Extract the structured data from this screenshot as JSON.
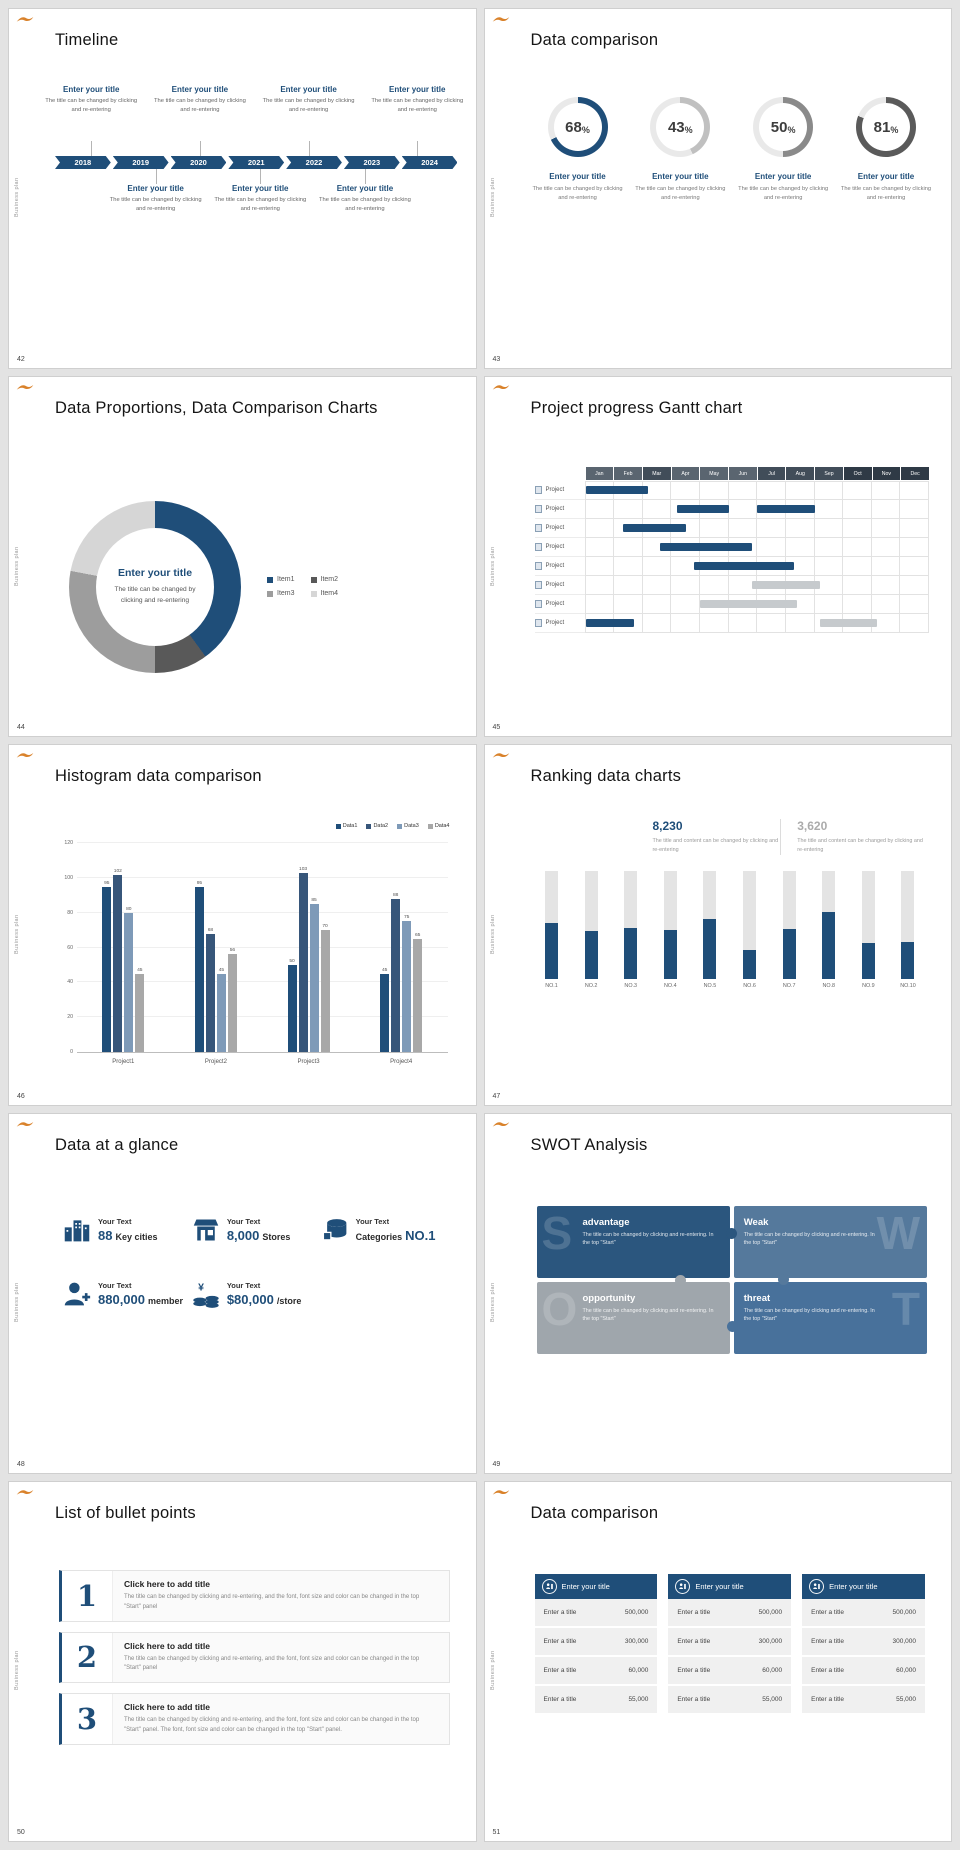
{
  "page": {
    "background": "#e3e3e3",
    "accent": "#1f4e79",
    "brand": "Business plan"
  },
  "slides": [
    {
      "number": "42",
      "title": "Timeline",
      "type": "timeline",
      "item_title": "Enter your title",
      "item_body": "The title can be changed by clicking and re-entering",
      "years": [
        "2018",
        "2019",
        "2020",
        "2021",
        "2022",
        "2023",
        "2024"
      ]
    },
    {
      "number": "43",
      "title": "Data comparison",
      "type": "rings",
      "item_title": "Enter your title",
      "item_body": "The title can be changed by clicking and re-entering",
      "rings": [
        {
          "percent": 68,
          "color": "#1f4e79"
        },
        {
          "percent": 43,
          "color": "#c0c0c0"
        },
        {
          "percent": 50,
          "color": "#8a8a8a"
        },
        {
          "percent": 81,
          "color": "#5a5a5a"
        }
      ]
    },
    {
      "number": "44",
      "title": "Data Proportions, Data Comparison Charts",
      "type": "donut",
      "center_title": "Enter your title",
      "center_body": "The title can be changed by clicking and re-entering",
      "segments": [
        {
          "label": "Item1",
          "value": 40,
          "color": "#1f4e79"
        },
        {
          "label": "Item2",
          "value": 10,
          "color": "#595959"
        },
        {
          "label": "Item3",
          "value": 28,
          "color": "#9d9d9d"
        },
        {
          "label": "Item4",
          "value": 22,
          "color": "#d6d6d6"
        }
      ]
    },
    {
      "number": "45",
      "title": "Project progress Gantt chart",
      "type": "gantt",
      "row_label": "Project",
      "months": [
        {
          "label": "Jan",
          "color": "#5a6570"
        },
        {
          "label": "Feb",
          "color": "#5a6570"
        },
        {
          "label": "Mar",
          "color": "#414d59"
        },
        {
          "label": "Apr",
          "color": "#5a6570"
        },
        {
          "label": "May",
          "color": "#5a6570"
        },
        {
          "label": "Jun",
          "color": "#5a6570"
        },
        {
          "label": "Jul",
          "color": "#414d59"
        },
        {
          "label": "Aug",
          "color": "#414d59"
        },
        {
          "label": "Sep",
          "color": "#414d59"
        },
        {
          "label": "Oct",
          "color": "#2f3a46"
        },
        {
          "label": "Nov",
          "color": "#2f3a46"
        },
        {
          "label": "Dec",
          "color": "#2f3a46"
        }
      ],
      "rows": [
        {
          "bars": [
            {
              "start": 1,
              "span": 2.2,
              "color": "#1f4e79"
            }
          ]
        },
        {
          "bars": [
            {
              "start": 4.2,
              "span": 1.8,
              "color": "#1f4e79"
            },
            {
              "start": 7,
              "span": 2,
              "color": "#1f4e79"
            }
          ]
        },
        {
          "bars": [
            {
              "start": 2.3,
              "span": 2.2,
              "color": "#1f4e79"
            }
          ]
        },
        {
          "bars": [
            {
              "start": 3.6,
              "span": 3.2,
              "color": "#1f4e79"
            }
          ]
        },
        {
          "bars": [
            {
              "start": 4.8,
              "span": 3.5,
              "color": "#1f4e79"
            }
          ]
        },
        {
          "bars": [
            {
              "start": 6.8,
              "span": 2.4,
              "color": "#c6cacd"
            }
          ]
        },
        {
          "bars": [
            {
              "start": 5,
              "span": 3.4,
              "color": "#c6cacd"
            }
          ]
        },
        {
          "bars": [
            {
              "start": 1,
              "span": 1.7,
              "color": "#1f4e79"
            },
            {
              "start": 9.2,
              "span": 2,
              "color": "#c6cacd"
            }
          ]
        }
      ]
    },
    {
      "number": "46",
      "title": "Histogram data comparison",
      "type": "histogram",
      "chart_data": {
        "type": "bar",
        "ymax": 120,
        "yticks": [
          0,
          20,
          40,
          60,
          80,
          100,
          120
        ],
        "categories": [
          "Project1",
          "Project2",
          "Project3",
          "Project4"
        ],
        "series": [
          {
            "name": "Data1",
            "color": "#1f4e79",
            "values": [
              95,
              95,
              50,
              45
            ]
          },
          {
            "name": "Data2",
            "color": "#37567a",
            "values": [
              102,
              68,
              103,
              88
            ]
          },
          {
            "name": "Data3",
            "color": "#7e9ab8",
            "values": [
              80,
              45,
              85,
              75
            ]
          },
          {
            "name": "Data4",
            "color": "#a8a8a8",
            "values": [
              45,
              56,
              70,
              65
            ]
          }
        ]
      }
    },
    {
      "number": "47",
      "title": "Ranking data charts",
      "type": "ranking",
      "stats": [
        {
          "value": "8,230",
          "color": "#1f4e79",
          "caption": "The title and content can be changed by clicking and re-entering"
        },
        {
          "value": "3,620",
          "color": "#ababab",
          "caption": "The title and content can be changed by clicking and re-entering"
        }
      ],
      "chart_data": {
        "type": "bar",
        "categories": [
          "NO.1",
          "NO.2",
          "NO.3",
          "NO.4",
          "NO.5",
          "NO.6",
          "NO.7",
          "NO.8",
          "NO.9",
          "NO.10"
        ],
        "values": [
          52,
          44,
          47,
          45,
          55,
          27,
          46,
          62,
          33,
          34
        ],
        "max": 100,
        "bar_color": "#1f4e79",
        "track_color": "#e4e4e4"
      }
    },
    {
      "number": "48",
      "title": "Data at a glance",
      "type": "glance",
      "items": [
        {
          "icon": "city-icon",
          "label": "Your Text",
          "value": "88",
          "unit": "Key cities",
          "value_first": true
        },
        {
          "icon": "store-icon",
          "label": "Your Text",
          "value": "8,000",
          "unit": "Stores",
          "value_first": true
        },
        {
          "icon": "category-icon",
          "label": "Your Text",
          "value": "NO.1",
          "unit": "Categories",
          "value_first": false
        },
        {
          "icon": "member-icon",
          "label": "Your Text",
          "value": "880,000",
          "unit": "member",
          "value_first": true
        },
        {
          "icon": "money-icon",
          "label": "Your Text",
          "value": "$80,000",
          "unit": "/store",
          "value_first": true
        }
      ]
    },
    {
      "number": "49",
      "title": "SWOT Analysis",
      "type": "swot",
      "quads": [
        {
          "letter": "S",
          "title": "advantage",
          "body": "The title can be changed by clicking and re-entering. In the top \"Start\"",
          "color": "#2b567e",
          "side": "left"
        },
        {
          "letter": "W",
          "title": "Weak",
          "body": "The title can be changed by clicking and re-entering. In the top \"Start\"",
          "color": "#55799c",
          "side": "right"
        },
        {
          "letter": "O",
          "title": "opportunity",
          "body": "The title can be changed by clicking and re-entering. In the top \"Start\"",
          "color": "#9fa6ac",
          "side": "left"
        },
        {
          "letter": "T",
          "title": "threat",
          "body": "The title can be changed by clicking and re-entering. In the top \"Start\"",
          "color": "#48719b",
          "side": "right"
        }
      ]
    },
    {
      "number": "50",
      "title": "List of bullet points",
      "type": "bullets",
      "items": [
        {
          "num": "1",
          "title": "Click here to add title",
          "body": "The title can be changed by clicking and re-entering, and the font, font size and color can be changed in the top \"Start\" panel"
        },
        {
          "num": "2",
          "title": "Click here to add title",
          "body": "The title can be changed by clicking and re-entering, and the font, font size and color can be changed in the top \"Start\" panel"
        },
        {
          "num": "3",
          "title": "Click here to add title",
          "body": "The title can be changed by clicking and re-entering, and the font, font size and color can be changed in the top \"Start\" panel. The font, font size and color can be changed in the top \"Start\" panel."
        }
      ]
    },
    {
      "number": "51",
      "title": "Data comparison",
      "type": "tables",
      "columns": [
        {
          "title": "Enter your title",
          "rows": [
            {
              "label": "Enter a title",
              "value": "500,000"
            },
            {
              "label": "Enter a title",
              "value": "300,000"
            },
            {
              "label": "Enter a title",
              "value": "60,000"
            },
            {
              "label": "Enter a title",
              "value": "55,000"
            }
          ]
        },
        {
          "title": "Enter your title",
          "rows": [
            {
              "label": "Enter a title",
              "value": "500,000"
            },
            {
              "label": "Enter a title",
              "value": "300,000"
            },
            {
              "label": "Enter a title",
              "value": "60,000"
            },
            {
              "label": "Enter a title",
              "value": "55,000"
            }
          ]
        },
        {
          "title": "Enter your title",
          "rows": [
            {
              "label": "Enter a title",
              "value": "500,000"
            },
            {
              "label": "Enter a title",
              "value": "300,000"
            },
            {
              "label": "Enter a title",
              "value": "60,000"
            },
            {
              "label": "Enter a title",
              "value": "55,000"
            }
          ]
        }
      ]
    }
  ]
}
